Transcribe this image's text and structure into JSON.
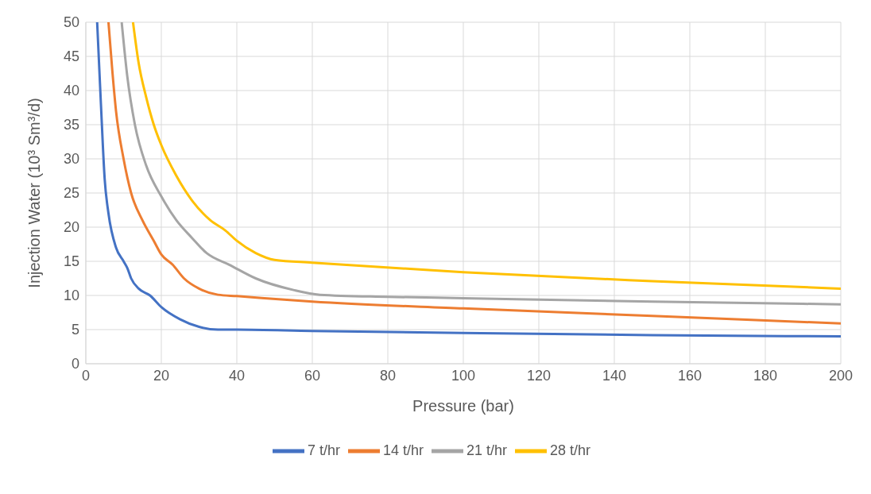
{
  "chart_data": {
    "type": "line",
    "xlabel": "Pressure (bar)",
    "ylabel": "Injection Water (10³ Sm³/d)",
    "xlim": [
      0,
      200
    ],
    "xticks": [
      0,
      20,
      40,
      60,
      80,
      100,
      120,
      140,
      160,
      180,
      200
    ],
    "ylim": [
      0,
      50
    ],
    "yticks": [
      0,
      5,
      10,
      15,
      20,
      25,
      30,
      35,
      40,
      45,
      50
    ],
    "grid": true,
    "legend": "bottom",
    "marker": "none",
    "line_style": "solid",
    "series": [
      {
        "name": "7 t/hr",
        "color": "#4472c4",
        "x": [
          3,
          4,
          5,
          6,
          8,
          10,
          11,
          12,
          14,
          17,
          20,
          25,
          30,
          35,
          40,
          60,
          100,
          150,
          200
        ],
        "values": [
          50,
          38,
          27,
          22,
          17,
          15,
          14,
          12.5,
          11,
          10,
          8.3,
          6.5,
          5.4,
          5,
          5,
          4.8,
          4.5,
          4.2,
          4
        ]
      },
      {
        "name": "14 t/hr",
        "color": "#ed7d31",
        "x": [
          6,
          7,
          8,
          10,
          12,
          15,
          18,
          20,
          23,
          26,
          30,
          35,
          40,
          60,
          100,
          150,
          200
        ],
        "values": [
          50,
          43,
          37,
          30,
          25,
          21,
          18,
          16,
          14.5,
          12.5,
          11,
          10.1,
          9.9,
          9.1,
          8.1,
          7,
          5.9
        ]
      },
      {
        "name": "21 t/hr",
        "color": "#a5a5a5",
        "x": [
          9.5,
          11,
          13,
          16,
          20,
          24,
          28,
          32,
          38,
          45,
          55,
          62,
          80,
          100,
          150,
          200
        ],
        "values": [
          50,
          42,
          35,
          29,
          24.5,
          21,
          18.5,
          16.2,
          14.5,
          12.5,
          10.8,
          10.1,
          9.8,
          9.6,
          9.1,
          8.7
        ]
      },
      {
        "name": "28 t/hr",
        "color": "#ffc000",
        "x": [
          12.5,
          14,
          16,
          18,
          20,
          24,
          28,
          33,
          37,
          40,
          45,
          50,
          60,
          100,
          150,
          200
        ],
        "values": [
          50,
          44,
          39,
          35,
          32,
          27.5,
          24,
          21,
          19.5,
          18,
          16.2,
          15.2,
          14.8,
          13.4,
          12.1,
          11
        ]
      }
    ]
  }
}
